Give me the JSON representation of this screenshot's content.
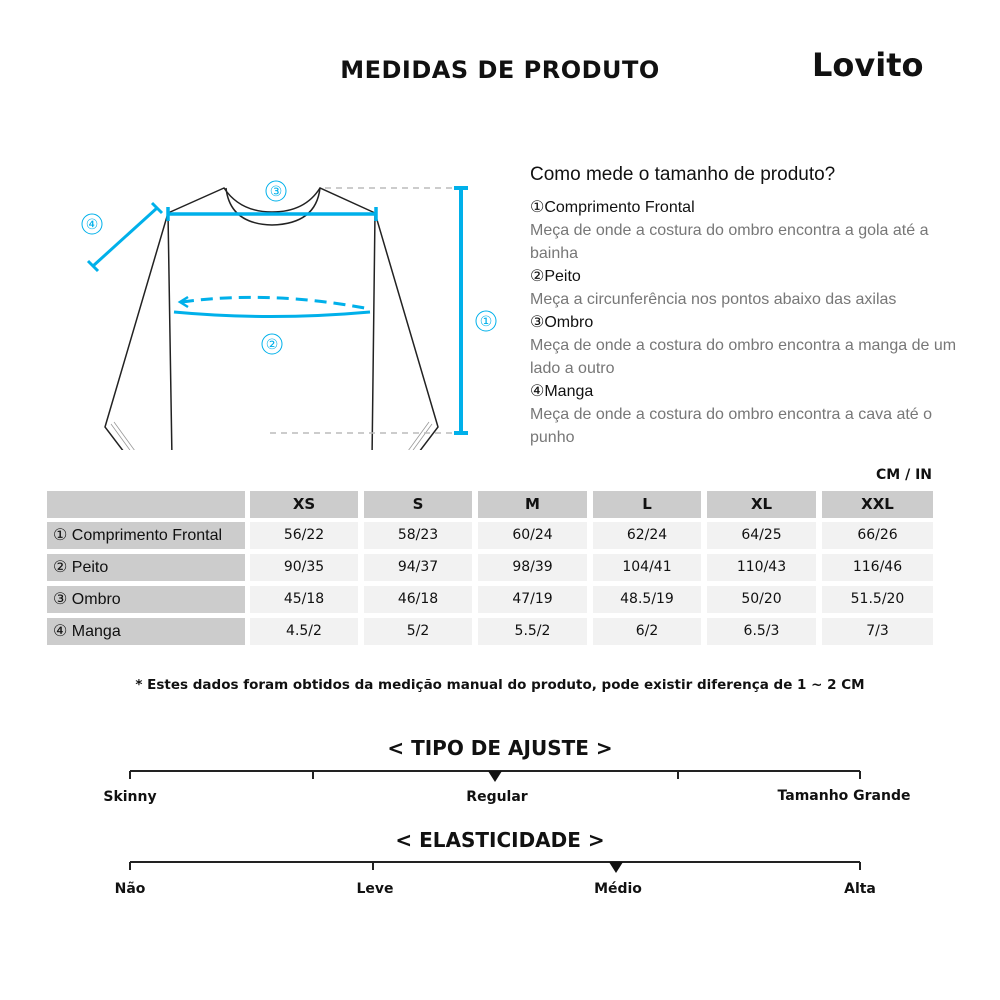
{
  "header": {
    "title": "MEDIDAS DE PRODUTO",
    "logo": "Lovito"
  },
  "diagram": {
    "markers": [
      "①",
      "②",
      "③",
      "④"
    ],
    "accent_color": "#00b0ea"
  },
  "guide": {
    "question": "Como mede o tamanho de produto?",
    "items": [
      {
        "heading": "①Comprimento Frontal",
        "desc": "Meça de onde a costura do ombro encontra a gola até a bainha"
      },
      {
        "heading": "②Peito",
        "desc": "Meça a circunferência nos pontos abaixo das axilas"
      },
      {
        "heading": "③Ombro",
        "desc": "Meça de onde a costura do ombro encontra a manga de um lado a outro"
      },
      {
        "heading": "④Manga",
        "desc": "Meça de onde a costura do ombro encontra a cava até o punho"
      }
    ]
  },
  "table": {
    "unit": "CM / IN",
    "sizes": [
      "XS",
      "S",
      "M",
      "L",
      "XL",
      "XXL"
    ],
    "rows": [
      {
        "label": "① Comprimento Frontal",
        "values": [
          "56/22",
          "58/23",
          "60/24",
          "62/24",
          "64/25",
          "66/26"
        ]
      },
      {
        "label": "② Peito",
        "values": [
          "90/35",
          "94/37",
          "98/39",
          "104/41",
          "110/43",
          "116/46"
        ]
      },
      {
        "label": "③ Ombro",
        "values": [
          "45/18",
          "46/18",
          "47/19",
          "48.5/19",
          "50/20",
          "51.5/20"
        ]
      },
      {
        "label": "④ Manga",
        "values": [
          "4.5/2",
          "5/2",
          "5.5/2",
          "6/2",
          "6.5/3",
          "7/3"
        ]
      }
    ]
  },
  "note": "* Estes dados foram obtidos da medição manual do produto, pode existir diferença de 1 ~ 2 CM",
  "fit": {
    "title": "< TIPO DE AJUSTE >",
    "labels": [
      "Skinny",
      "Regular",
      "Tamanho Grande"
    ],
    "selected": "Regular"
  },
  "elasticity": {
    "title": "< ELASTICIDADE >",
    "labels": [
      "Não",
      "Leve",
      "Médio",
      "Alta"
    ],
    "selected": "Médio"
  }
}
